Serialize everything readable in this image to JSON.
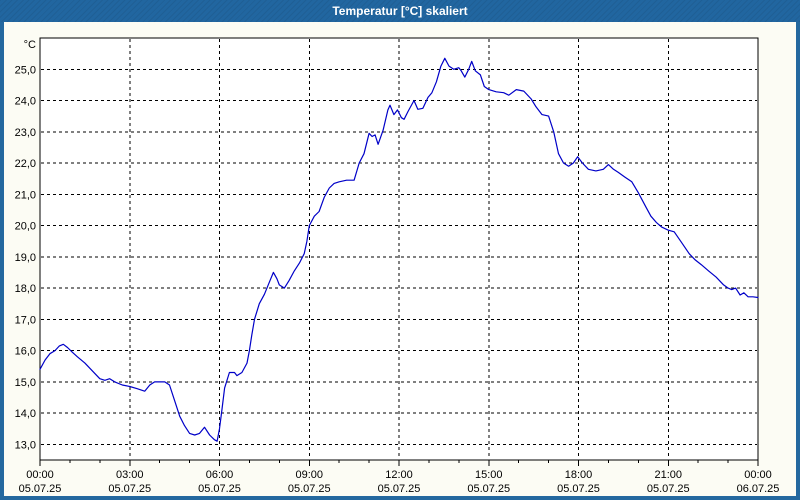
{
  "window": {
    "title": "Temperatur [°C] skaliert"
  },
  "colors": {
    "frame": "#24689f",
    "title_bar": "#2166a0",
    "title_text": "#ffffff",
    "background": "#fcfcf4",
    "plot_background": "#ffffff",
    "axis": "#000000",
    "grid": "#000000",
    "line": "#0000c8"
  },
  "chart_data": {
    "type": "line",
    "title": "Temperatur [°C] skaliert",
    "grid": "dashed",
    "legend": "none",
    "y_axis": {
      "unit": "°C",
      "range": [
        12.5,
        26.0
      ],
      "ticks": [
        {
          "value": 25.0,
          "label": "25,0"
        },
        {
          "value": 24.0,
          "label": "24,0"
        },
        {
          "value": 23.0,
          "label": "23,0"
        },
        {
          "value": 22.0,
          "label": "22,0"
        },
        {
          "value": 21.0,
          "label": "21,0"
        },
        {
          "value": 20.0,
          "label": "20,0"
        },
        {
          "value": 19.0,
          "label": "19,0"
        },
        {
          "value": 18.0,
          "label": "18,0"
        },
        {
          "value": 17.0,
          "label": "17,0"
        },
        {
          "value": 16.0,
          "label": "16,0"
        },
        {
          "value": 15.0,
          "label": "15,0"
        },
        {
          "value": 14.0,
          "label": "14,0"
        },
        {
          "value": 13.0,
          "label": "13,0"
        }
      ]
    },
    "x_axis": {
      "range_hours": [
        0,
        24
      ],
      "minor_tick_hours": 1,
      "major_ticks": [
        {
          "hour": 0,
          "time": "00:00",
          "date": "05.07.25"
        },
        {
          "hour": 3,
          "time": "03:00",
          "date": "05.07.25"
        },
        {
          "hour": 6,
          "time": "06:00",
          "date": "05.07.25"
        },
        {
          "hour": 9,
          "time": "09:00",
          "date": "05.07.25"
        },
        {
          "hour": 12,
          "time": "12:00",
          "date": "05.07.25"
        },
        {
          "hour": 15,
          "time": "15:00",
          "date": "05.07.25"
        },
        {
          "hour": 18,
          "time": "18:00",
          "date": "05.07.25"
        },
        {
          "hour": 21,
          "time": "21:00",
          "date": "05.07.25"
        },
        {
          "hour": 24,
          "time": "00:00",
          "date": "06.07.25"
        }
      ]
    },
    "series": [
      {
        "name": "Temperatur",
        "color": "#0000c8",
        "points": [
          [
            0,
            15.4
          ],
          [
            0.17,
            15.7
          ],
          [
            0.33,
            15.9
          ],
          [
            0.5,
            16.0
          ],
          [
            0.65,
            16.15
          ],
          [
            0.78,
            16.2
          ],
          [
            0.92,
            16.1
          ],
          [
            1.08,
            15.95
          ],
          [
            1.25,
            15.8
          ],
          [
            1.5,
            15.6
          ],
          [
            1.75,
            15.35
          ],
          [
            2.0,
            15.1
          ],
          [
            2.17,
            15.05
          ],
          [
            2.33,
            15.1
          ],
          [
            2.5,
            15.0
          ],
          [
            2.75,
            14.9
          ],
          [
            3.0,
            14.85
          ],
          [
            3.25,
            14.78
          ],
          [
            3.5,
            14.7
          ],
          [
            3.67,
            14.9
          ],
          [
            3.83,
            15.0
          ],
          [
            4.17,
            15.0
          ],
          [
            4.33,
            14.9
          ],
          [
            4.5,
            14.4
          ],
          [
            4.67,
            13.9
          ],
          [
            4.83,
            13.6
          ],
          [
            5.0,
            13.35
          ],
          [
            5.17,
            13.3
          ],
          [
            5.33,
            13.35
          ],
          [
            5.5,
            13.55
          ],
          [
            5.67,
            13.3
          ],
          [
            5.83,
            13.15
          ],
          [
            5.92,
            13.1
          ],
          [
            6.0,
            13.5
          ],
          [
            6.08,
            14.1
          ],
          [
            6.17,
            14.8
          ],
          [
            6.33,
            15.3
          ],
          [
            6.5,
            15.3
          ],
          [
            6.58,
            15.2
          ],
          [
            6.75,
            15.3
          ],
          [
            6.92,
            15.6
          ],
          [
            7.0,
            16.0
          ],
          [
            7.08,
            16.5
          ],
          [
            7.17,
            17.0
          ],
          [
            7.33,
            17.5
          ],
          [
            7.5,
            17.8
          ],
          [
            7.67,
            18.2
          ],
          [
            7.8,
            18.5
          ],
          [
            7.92,
            18.3
          ],
          [
            8.0,
            18.1
          ],
          [
            8.17,
            18.0
          ],
          [
            8.33,
            18.25
          ],
          [
            8.5,
            18.55
          ],
          [
            8.67,
            18.8
          ],
          [
            8.83,
            19.1
          ],
          [
            8.92,
            19.5
          ],
          [
            9.0,
            20.0
          ],
          [
            9.17,
            20.3
          ],
          [
            9.33,
            20.45
          ],
          [
            9.5,
            20.9
          ],
          [
            9.67,
            21.2
          ],
          [
            9.83,
            21.35
          ],
          [
            10.0,
            21.4
          ],
          [
            10.25,
            21.45
          ],
          [
            10.5,
            21.45
          ],
          [
            10.67,
            22.0
          ],
          [
            10.83,
            22.3
          ],
          [
            11.0,
            22.95
          ],
          [
            11.1,
            22.85
          ],
          [
            11.2,
            22.9
          ],
          [
            11.3,
            22.6
          ],
          [
            11.47,
            23.05
          ],
          [
            11.63,
            23.7
          ],
          [
            11.7,
            23.85
          ],
          [
            11.83,
            23.55
          ],
          [
            11.95,
            23.7
          ],
          [
            12.08,
            23.45
          ],
          [
            12.17,
            23.4
          ],
          [
            12.3,
            23.65
          ],
          [
            12.5,
            24.0
          ],
          [
            12.63,
            23.72
          ],
          [
            12.8,
            23.75
          ],
          [
            12.97,
            24.1
          ],
          [
            13.1,
            24.25
          ],
          [
            13.25,
            24.6
          ],
          [
            13.4,
            25.1
          ],
          [
            13.53,
            25.35
          ],
          [
            13.67,
            25.1
          ],
          [
            13.83,
            25.0
          ],
          [
            14.0,
            25.05
          ],
          [
            14.08,
            24.95
          ],
          [
            14.2,
            24.75
          ],
          [
            14.33,
            25.0
          ],
          [
            14.43,
            25.25
          ],
          [
            14.55,
            24.95
          ],
          [
            14.72,
            24.82
          ],
          [
            14.85,
            24.45
          ],
          [
            15.0,
            24.35
          ],
          [
            15.25,
            24.28
          ],
          [
            15.5,
            24.25
          ],
          [
            15.67,
            24.17
          ],
          [
            15.92,
            24.35
          ],
          [
            16.17,
            24.3
          ],
          [
            16.42,
            24.05
          ],
          [
            16.58,
            23.8
          ],
          [
            16.78,
            23.55
          ],
          [
            17.0,
            23.5
          ],
          [
            17.17,
            23.0
          ],
          [
            17.33,
            22.3
          ],
          [
            17.5,
            22.0
          ],
          [
            17.67,
            21.9
          ],
          [
            17.83,
            22.0
          ],
          [
            17.97,
            22.2
          ],
          [
            18.13,
            22.0
          ],
          [
            18.33,
            21.8
          ],
          [
            18.58,
            21.75
          ],
          [
            18.83,
            21.8
          ],
          [
            19.0,
            21.95
          ],
          [
            19.17,
            21.8
          ],
          [
            19.33,
            21.7
          ],
          [
            19.55,
            21.55
          ],
          [
            19.78,
            21.4
          ],
          [
            20.0,
            21.05
          ],
          [
            20.25,
            20.6
          ],
          [
            20.42,
            20.3
          ],
          [
            20.6,
            20.1
          ],
          [
            20.78,
            19.95
          ],
          [
            21.0,
            19.85
          ],
          [
            21.2,
            19.8
          ],
          [
            21.45,
            19.45
          ],
          [
            21.7,
            19.1
          ],
          [
            21.9,
            18.9
          ],
          [
            22.1,
            18.75
          ],
          [
            22.35,
            18.55
          ],
          [
            22.6,
            18.35
          ],
          [
            22.85,
            18.1
          ],
          [
            23.0,
            18.0
          ],
          [
            23.12,
            17.95
          ],
          [
            23.25,
            18.0
          ],
          [
            23.4,
            17.78
          ],
          [
            23.53,
            17.85
          ],
          [
            23.67,
            17.72
          ],
          [
            23.83,
            17.72
          ],
          [
            24.0,
            17.7
          ]
        ]
      }
    ]
  }
}
